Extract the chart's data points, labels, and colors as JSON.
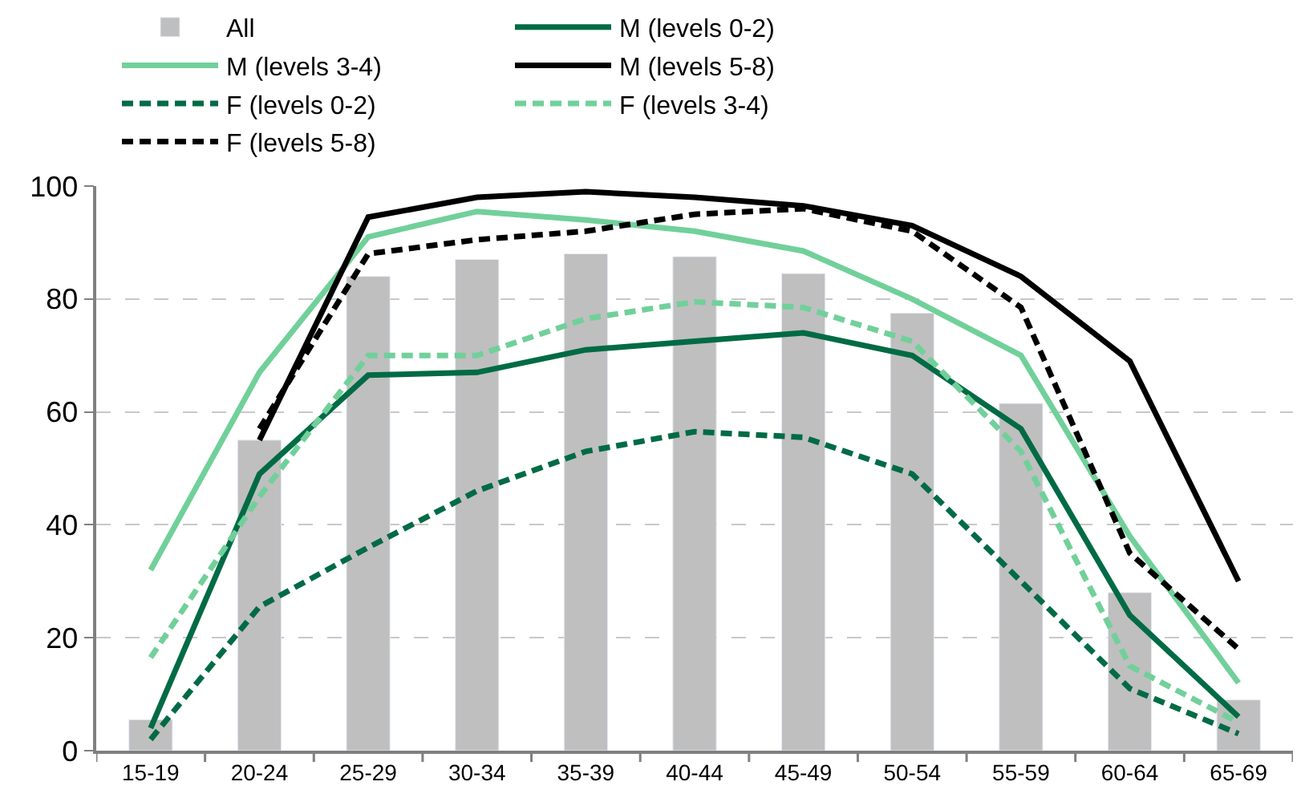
{
  "chart_data": {
    "type": "line",
    "categories": [
      "15-19",
      "20-24",
      "25-29",
      "30-34",
      "35-39",
      "40-44",
      "45-49",
      "50-54",
      "55-59",
      "60-64",
      "65-69"
    ],
    "series": [
      {
        "name": "All",
        "type": "bar",
        "color": "#bfbfbf",
        "values": [
          5.5,
          55,
          84,
          87,
          88,
          87.5,
          84.5,
          77.5,
          61.5,
          28,
          9
        ]
      },
      {
        "name": "M (levels 0-2)",
        "color": "#006b45",
        "line_style": "solid",
        "values": [
          4,
          49,
          66.5,
          67,
          71,
          72.5,
          74,
          70,
          57,
          24,
          6
        ]
      },
      {
        "name": "M (levels 3-4)",
        "color": "#71d09a",
        "line_style": "solid",
        "values": [
          32,
          67,
          91,
          95.5,
          94,
          92,
          88.5,
          80,
          70,
          38,
          12
        ]
      },
      {
        "name": "M (levels 5-8)",
        "color": "#000000",
        "line_style": "solid",
        "values": [
          null,
          55,
          94.5,
          98,
          99,
          98,
          96.5,
          93,
          84,
          69,
          30
        ]
      },
      {
        "name": "F (levels 0-2)",
        "color": "#006b45",
        "line_style": "dashed",
        "values": [
          2,
          25.5,
          36,
          46,
          53,
          56.5,
          55.5,
          49,
          30,
          11,
          3
        ]
      },
      {
        "name": "F (levels 3-4)",
        "color": "#71d09a",
        "line_style": "dashed",
        "values": [
          16.5,
          45,
          70,
          70,
          76.5,
          79.5,
          78.5,
          72.5,
          53,
          15,
          5
        ]
      },
      {
        "name": "F (levels 5-8)",
        "color": "#000000",
        "line_style": "dashed",
        "values": [
          null,
          57,
          88,
          90.5,
          92,
          95,
          96,
          92,
          78.5,
          35,
          18
        ]
      }
    ],
    "ylim": [
      0,
      100
    ],
    "yticks": [
      0,
      20,
      40,
      60,
      80,
      100
    ],
    "grid": "y",
    "legend": "top",
    "marker": "none"
  }
}
